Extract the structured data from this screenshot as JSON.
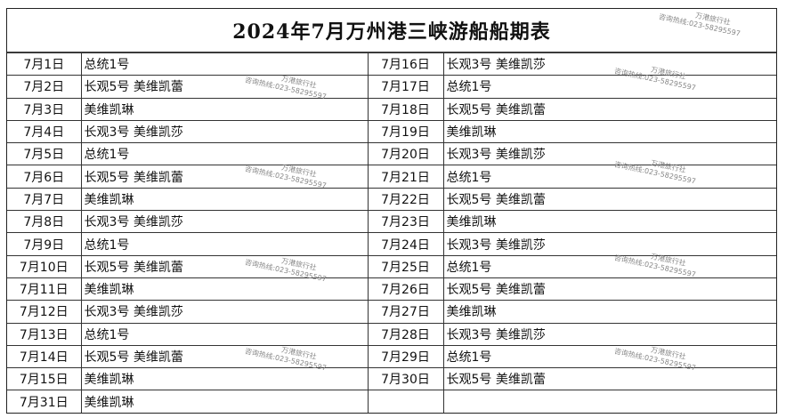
{
  "title": "2024年7月万州港三峡游船船期表",
  "left": [
    {
      "date": "7月1日",
      "ship": "总统1号"
    },
    {
      "date": "7月2日",
      "ship": "长观5号  美维凯蕾"
    },
    {
      "date": "7月3日",
      "ship": "美维凯琳"
    },
    {
      "date": "7月4日",
      "ship": "长观3号  美维凯莎"
    },
    {
      "date": "7月5日",
      "ship": "总统1号"
    },
    {
      "date": "7月6日",
      "ship": "长观5号  美维凯蕾"
    },
    {
      "date": "7月7日",
      "ship": "美维凯琳"
    },
    {
      "date": "7月8日",
      "ship": "长观3号  美维凯莎"
    },
    {
      "date": "7月9日",
      "ship": "总统1号"
    },
    {
      "date": "7月10日",
      "ship": "长观5号  美维凯蕾"
    },
    {
      "date": "7月11日",
      "ship": "美维凯琳"
    },
    {
      "date": "7月12日",
      "ship": "长观3号  美维凯莎"
    },
    {
      "date": "7月13日",
      "ship": "总统1号"
    },
    {
      "date": "7月14日",
      "ship": "长观5号  美维凯蕾"
    },
    {
      "date": "7月15日",
      "ship": "美维凯琳"
    },
    {
      "date": "7月31日",
      "ship": "美维凯琳"
    }
  ],
  "right": [
    {
      "date": "7月16日",
      "ship": "长观3号  美维凯莎"
    },
    {
      "date": "7月17日",
      "ship": "总统1号"
    },
    {
      "date": "7月18日",
      "ship": "长观5号  美维凯蕾"
    },
    {
      "date": "7月19日",
      "ship": "美维凯琳"
    },
    {
      "date": "7月20日",
      "ship": "长观3号  美维凯莎"
    },
    {
      "date": "7月21日",
      "ship": "总统1号"
    },
    {
      "date": "7月22日",
      "ship": "长观5号  美维凯蕾"
    },
    {
      "date": "7月23日",
      "ship": "美维凯琳"
    },
    {
      "date": "7月24日",
      "ship": "长观3号  美维凯莎"
    },
    {
      "date": "7月25日",
      "ship": "总统1号"
    },
    {
      "date": "7月26日",
      "ship": "长观5号  美维凯蕾"
    },
    {
      "date": "7月27日",
      "ship": "美维凯琳"
    },
    {
      "date": "7月28日",
      "ship": "长观3号  美维凯莎"
    },
    {
      "date": "7月29日",
      "ship": "总统1号"
    },
    {
      "date": "7月30日",
      "ship": "长观5号  美维凯蕾"
    },
    {
      "date": "",
      "ship": ""
    }
  ],
  "watermark": {
    "name": "万港旅行社",
    "hotline": "咨询热线:023-58295597"
  }
}
